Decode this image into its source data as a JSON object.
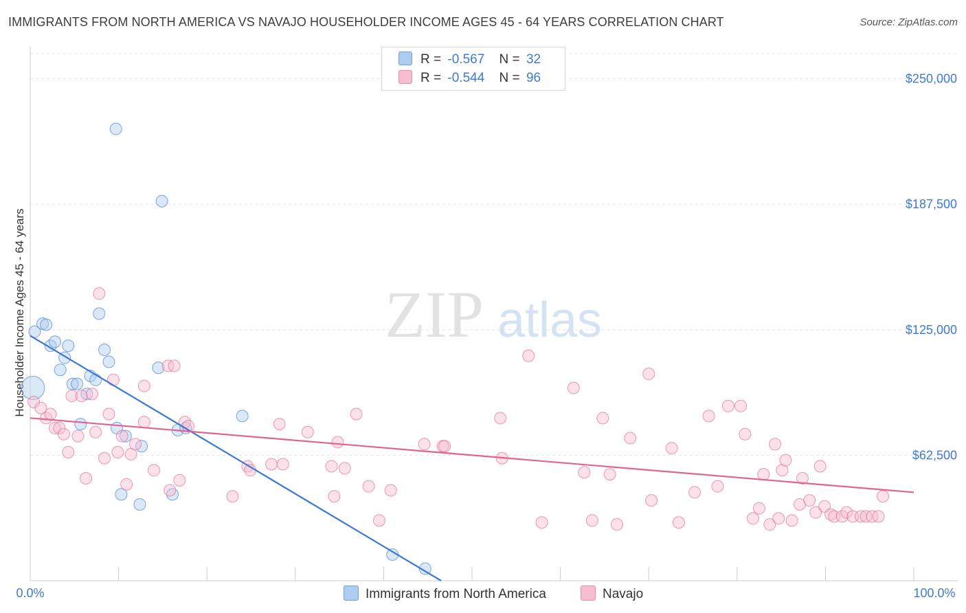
{
  "header": {
    "title": "IMMIGRANTS FROM NORTH AMERICA VS NAVAJO HOUSEHOLDER INCOME AGES 45 - 64 YEARS CORRELATION CHART",
    "source": "Source: ZipAtlas.com"
  },
  "watermark": {
    "zip": "ZIP",
    "atlas": "atlas"
  },
  "legend": {
    "rows": [
      {
        "r_label": "R =",
        "r_value": "-0.567",
        "n_label": "N =",
        "n_value": "32",
        "color": "#aecbf0"
      },
      {
        "r_label": "R =",
        "r_value": "-0.544",
        "n_label": "N =",
        "n_value": "96",
        "color": "#f7bdd0"
      }
    ]
  },
  "bottom_legend": {
    "items": [
      {
        "label": "Immigrants from North America",
        "color": "#aecbf0"
      },
      {
        "label": "Navajo",
        "color": "#f7bdd0"
      }
    ]
  },
  "chart_data": {
    "type": "scatter",
    "title": "IMMIGRANTS FROM NORTH AMERICA VS NAVAJO HOUSEHOLDER INCOME AGES 45 - 64 YEARS CORRELATION CHART",
    "xlabel": "",
    "ylabel": "Householder Income Ages 45 - 64 years",
    "xlim": [
      0,
      100
    ],
    "ylim": [
      0,
      262500
    ],
    "x_tick_labels": [
      "0.0%",
      "100.0%"
    ],
    "y_ticks": [
      62500,
      125000,
      187500,
      250000
    ],
    "y_tick_labels": [
      "$62,500",
      "$125,000",
      "$187,500",
      "$250,000"
    ],
    "grid": true,
    "legend_position": "top-center",
    "series": [
      {
        "name": "Immigrants from North America",
        "color": "#3a78d4",
        "fill": "#aecbf0",
        "r": "-0.567",
        "n": "32",
        "trend": {
          "x": [
            0,
            46.5
          ],
          "y": [
            122000,
            0
          ]
        },
        "points": [
          [
            0.3,
            96000,
            3
          ],
          [
            0.5,
            124000,
            1
          ],
          [
            1.4,
            128000,
            1
          ],
          [
            1.8,
            127500,
            1
          ],
          [
            2.3,
            117000,
            1
          ],
          [
            2.8,
            119000,
            1
          ],
          [
            3.4,
            105000,
            1
          ],
          [
            3.9,
            111000,
            1
          ],
          [
            4.3,
            117000,
            1
          ],
          [
            4.8,
            98000,
            1
          ],
          [
            5.3,
            98000,
            1
          ],
          [
            5.7,
            78000,
            1
          ],
          [
            6.4,
            93000,
            1
          ],
          [
            6.8,
            102000,
            1
          ],
          [
            7.4,
            100000,
            1
          ],
          [
            7.8,
            133000,
            1
          ],
          [
            8.4,
            115000,
            1
          ],
          [
            8.9,
            109000,
            1
          ],
          [
            9.7,
            225000,
            1
          ],
          [
            9.8,
            76000,
            1
          ],
          [
            10.3,
            43000,
            1
          ],
          [
            10.8,
            72000,
            1
          ],
          [
            12.4,
            38000,
            1
          ],
          [
            12.6,
            67000,
            1
          ],
          [
            14.5,
            106000,
            1
          ],
          [
            14.9,
            189000,
            1
          ],
          [
            16.1,
            43000,
            1
          ],
          [
            16.7,
            75000,
            1
          ],
          [
            17.6,
            76000,
            1
          ],
          [
            24.0,
            82000,
            1
          ],
          [
            41.0,
            13000,
            1
          ],
          [
            44.7,
            6000,
            1
          ]
        ]
      },
      {
        "name": "Navajo",
        "color": "#e0648f",
        "fill": "#f7bdd0",
        "r": "-0.544",
        "n": "96",
        "trend": {
          "x": [
            0,
            100
          ],
          "y": [
            81000,
            44000
          ]
        },
        "points": [
          [
            0.4,
            89000,
            1
          ],
          [
            1.2,
            86000,
            1
          ],
          [
            1.8,
            81000,
            1
          ],
          [
            2.3,
            83000,
            1
          ],
          [
            2.8,
            76000,
            1
          ],
          [
            3.3,
            76000,
            1
          ],
          [
            3.8,
            73000,
            1
          ],
          [
            4.3,
            64000,
            1
          ],
          [
            4.7,
            92000,
            1
          ],
          [
            5.4,
            72000,
            1
          ],
          [
            5.8,
            92000,
            1
          ],
          [
            6.3,
            51000,
            1
          ],
          [
            7.0,
            93000,
            1
          ],
          [
            7.4,
            74000,
            1
          ],
          [
            7.8,
            143000,
            1
          ],
          [
            8.4,
            61000,
            1
          ],
          [
            8.9,
            83000,
            1
          ],
          [
            9.4,
            100000,
            1
          ],
          [
            9.9,
            64000,
            1
          ],
          [
            10.4,
            72000,
            1
          ],
          [
            10.9,
            48000,
            1
          ],
          [
            11.4,
            63000,
            1
          ],
          [
            11.9,
            68000,
            1
          ],
          [
            12.9,
            97000,
            1
          ],
          [
            12.9,
            79000,
            1
          ],
          [
            14.0,
            55000,
            1
          ],
          [
            15.6,
            107000,
            1
          ],
          [
            15.8,
            45000,
            1
          ],
          [
            16.3,
            107000,
            1
          ],
          [
            16.9,
            50000,
            1
          ],
          [
            17.5,
            79000,
            1
          ],
          [
            17.9,
            77000,
            1
          ],
          [
            22.9,
            42000,
            1
          ],
          [
            24.6,
            57000,
            1
          ],
          [
            24.9,
            55000,
            1
          ],
          [
            27.3,
            58000,
            1
          ],
          [
            28.2,
            78000,
            1
          ],
          [
            28.6,
            58000,
            1
          ],
          [
            31.4,
            74000,
            1
          ],
          [
            34.1,
            57000,
            1
          ],
          [
            34.4,
            42000,
            1
          ],
          [
            34.8,
            69000,
            1
          ],
          [
            35.6,
            56000,
            1
          ],
          [
            36.9,
            83000,
            1
          ],
          [
            38.3,
            47000,
            1
          ],
          [
            39.5,
            30000,
            1
          ],
          [
            40.8,
            45000,
            1
          ],
          [
            44.6,
            68000,
            1
          ],
          [
            46.7,
            67000,
            1
          ],
          [
            46.9,
            67000,
            1
          ],
          [
            53.2,
            81000,
            1
          ],
          [
            53.4,
            61000,
            1
          ],
          [
            56.4,
            112000,
            1
          ],
          [
            57.9,
            29000,
            1
          ],
          [
            61.5,
            96000,
            1
          ],
          [
            62.7,
            54000,
            1
          ],
          [
            63.6,
            30000,
            1
          ],
          [
            64.8,
            81000,
            1
          ],
          [
            65.6,
            53000,
            1
          ],
          [
            66.4,
            28000,
            1
          ],
          [
            67.9,
            71000,
            1
          ],
          [
            70.0,
            103000,
            1
          ],
          [
            70.3,
            40000,
            1
          ],
          [
            72.6,
            66000,
            1
          ],
          [
            73.4,
            29000,
            1
          ],
          [
            75.2,
            44000,
            1
          ],
          [
            76.8,
            82000,
            1
          ],
          [
            77.8,
            47000,
            1
          ],
          [
            79.0,
            87000,
            1
          ],
          [
            80.4,
            87000,
            1
          ],
          [
            80.9,
            73000,
            1
          ],
          [
            81.8,
            31000,
            1
          ],
          [
            82.5,
            36000,
            1
          ],
          [
            83.0,
            53000,
            1
          ],
          [
            83.7,
            28000,
            1
          ],
          [
            84.3,
            68000,
            1
          ],
          [
            84.7,
            31000,
            1
          ],
          [
            85.1,
            55000,
            1
          ],
          [
            85.5,
            60000,
            1
          ],
          [
            86.2,
            30000,
            1
          ],
          [
            87.1,
            38000,
            1
          ],
          [
            87.4,
            51000,
            1
          ],
          [
            88.2,
            40000,
            1
          ],
          [
            88.9,
            34000,
            1
          ],
          [
            89.4,
            57000,
            1
          ],
          [
            89.9,
            37000,
            1
          ],
          [
            90.6,
            33000,
            1
          ],
          [
            91.0,
            32000,
            1
          ],
          [
            91.9,
            32000,
            1
          ],
          [
            92.4,
            34000,
            1
          ],
          [
            93.1,
            32000,
            1
          ],
          [
            94.0,
            32000,
            1
          ],
          [
            94.6,
            32000,
            1
          ],
          [
            95.3,
            32000,
            1
          ],
          [
            96.0,
            32000,
            1
          ],
          [
            96.5,
            42000,
            1
          ]
        ]
      }
    ]
  }
}
